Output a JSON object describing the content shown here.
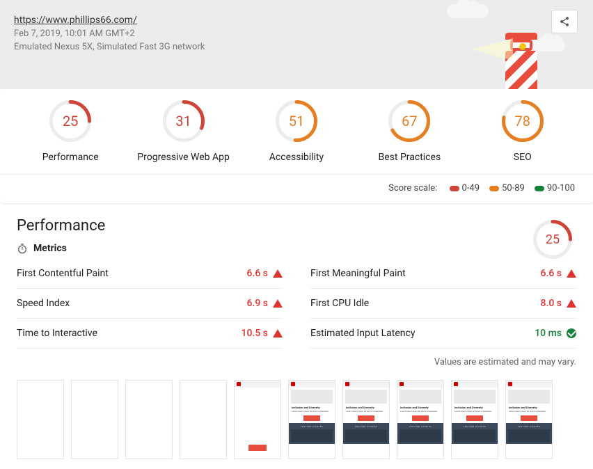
{
  "colors": {
    "fail": "#d04437",
    "avg": "#e67e22",
    "pass": "#178239",
    "track": "#ececec"
  },
  "header": {
    "url": "https://www.phillips66.com/",
    "timestamp": "Feb 7, 2019, 10:01 AM GMT+2",
    "env": "Emulated Nexus 5X, Simulated Fast 3G network"
  },
  "gauges": [
    {
      "score": 25,
      "label": "Performance",
      "band": "fail"
    },
    {
      "score": 31,
      "label": "Progressive Web App",
      "band": "fail"
    },
    {
      "score": 51,
      "label": "Accessibility",
      "band": "avg"
    },
    {
      "score": 67,
      "label": "Best Practices",
      "band": "avg"
    },
    {
      "score": 78,
      "label": "SEO",
      "band": "avg"
    }
  ],
  "scale": {
    "label": "Score scale:",
    "ranges": [
      {
        "text": "0-49",
        "color": "#d04437"
      },
      {
        "text": "50-89",
        "color": "#e67e22"
      },
      {
        "text": "90-100",
        "color": "#178239"
      }
    ]
  },
  "performance": {
    "title": "Performance",
    "metrics_label": "Metrics",
    "score": 25,
    "band": "fail",
    "metrics_left": [
      {
        "name": "First Contentful Paint",
        "value": "6.6 s",
        "status": "fail"
      },
      {
        "name": "Speed Index",
        "value": "6.9 s",
        "status": "fail"
      },
      {
        "name": "Time to Interactive",
        "value": "10.5 s",
        "status": "fail"
      }
    ],
    "metrics_right": [
      {
        "name": "First Meaningful Paint",
        "value": "6.6 s",
        "status": "fail"
      },
      {
        "name": "First CPU Idle",
        "value": "8.0 s",
        "status": "fail"
      },
      {
        "name": "Estimated Input Latency",
        "value": "10 ms",
        "status": "pass"
      }
    ],
    "values_note": "Values are estimated and may vary."
  },
  "filmstrip": [
    {
      "state": "blank"
    },
    {
      "state": "blank"
    },
    {
      "state": "blank"
    },
    {
      "state": "blank"
    },
    {
      "state": "partial"
    },
    {
      "state": "loaded"
    },
    {
      "state": "loaded"
    },
    {
      "state": "loaded"
    },
    {
      "state": "loaded"
    },
    {
      "state": "loaded"
    }
  ],
  "thumb_content": {
    "title": "Inclusion and Diversity",
    "button": "Learn more",
    "footer_label": "FEATURE STORIES"
  }
}
